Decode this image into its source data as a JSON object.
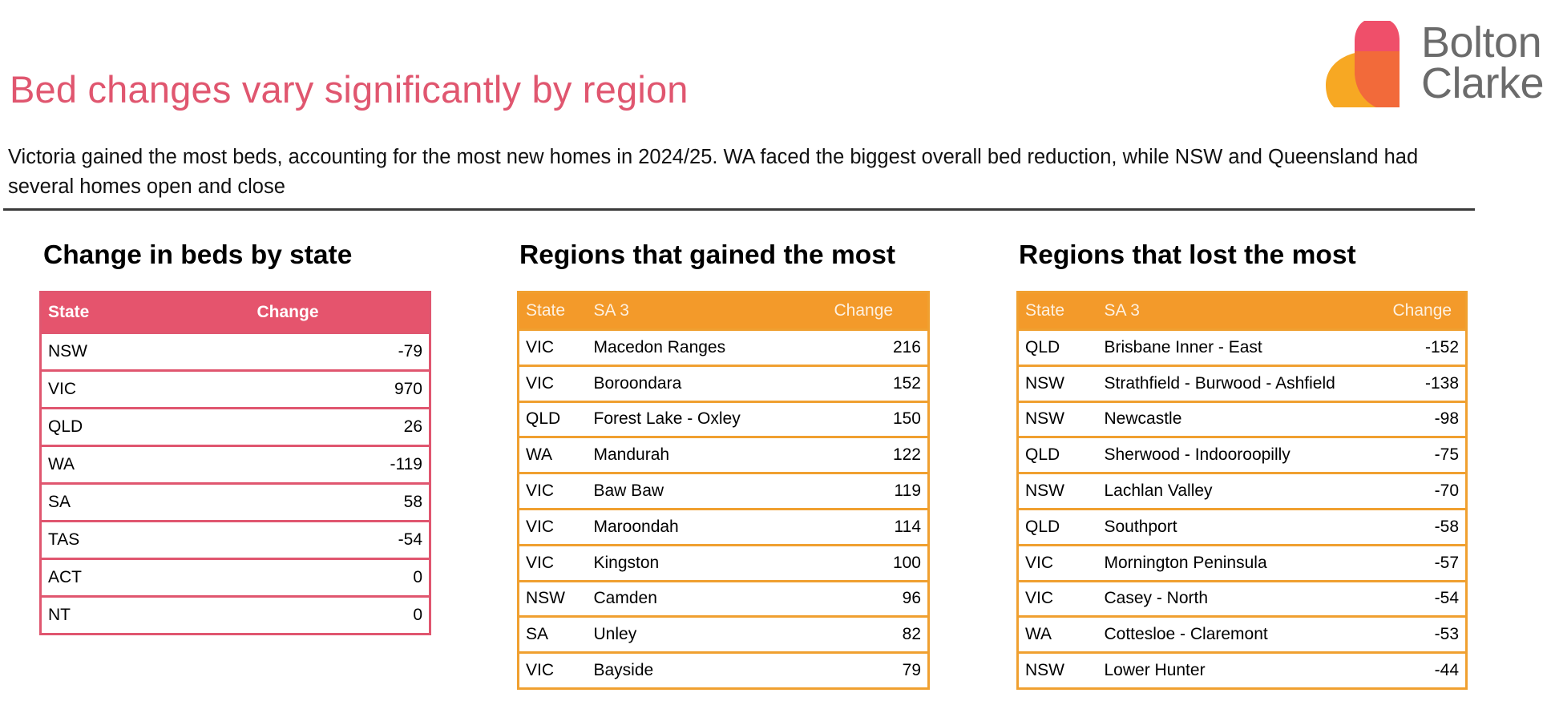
{
  "header": {
    "title": "Bed changes vary significantly by region",
    "subtitle": "Victoria gained the most beds, accounting for the most new homes in 2024/25. WA faced the biggest overall bed reduction, while NSW and Queensland had several homes open and close"
  },
  "logo": {
    "line1": "Bolton",
    "line2": "Clarke",
    "colors": {
      "pink": "#ef4f6a",
      "orange": "#f7a823",
      "overlap": "#f26a3a",
      "text": "#6b6b6b"
    }
  },
  "state_table": {
    "heading": "Change in beds by state",
    "columns": [
      "State",
      "Change"
    ],
    "rows": [
      [
        "NSW",
        "-79"
      ],
      [
        "VIC",
        "970"
      ],
      [
        "QLD",
        "26"
      ],
      [
        "WA",
        "-119"
      ],
      [
        "SA",
        "58"
      ],
      [
        "TAS",
        "-54"
      ],
      [
        "ACT",
        "0"
      ],
      [
        "NT",
        "0"
      ]
    ]
  },
  "gained_table": {
    "heading": "Regions that gained the most",
    "columns": [
      "State",
      "SA 3",
      "Change"
    ],
    "rows": [
      [
        "VIC",
        "Macedon Ranges",
        "216"
      ],
      [
        "VIC",
        "Boroondara",
        "152"
      ],
      [
        "QLD",
        "Forest Lake - Oxley",
        "150"
      ],
      [
        "WA",
        "Mandurah",
        "122"
      ],
      [
        "VIC",
        "Baw Baw",
        "119"
      ],
      [
        "VIC",
        "Maroondah",
        "114"
      ],
      [
        "VIC",
        "Kingston",
        "100"
      ],
      [
        "NSW",
        "Camden",
        "96"
      ],
      [
        "SA",
        "Unley",
        "82"
      ],
      [
        "VIC",
        "Bayside",
        "79"
      ]
    ]
  },
  "lost_table": {
    "heading": "Regions that lost the most",
    "columns": [
      "State",
      "SA 3",
      "Change"
    ],
    "rows": [
      [
        "QLD",
        "Brisbane Inner - East",
        "-152"
      ],
      [
        "NSW",
        "Strathfield - Burwood - Ashfield",
        "-138"
      ],
      [
        "NSW",
        "Newcastle",
        "-98"
      ],
      [
        "QLD",
        "Sherwood - Indooroopilly",
        "-75"
      ],
      [
        "NSW",
        "Lachlan Valley",
        "-70"
      ],
      [
        "QLD",
        "Southport",
        "-58"
      ],
      [
        "VIC",
        "Mornington Peninsula",
        "-57"
      ],
      [
        "VIC",
        "Casey - North",
        "-54"
      ],
      [
        "WA",
        "Cottesloe - Claremont",
        "-53"
      ],
      [
        "NSW",
        "Lower Hunter",
        "-44"
      ]
    ]
  }
}
